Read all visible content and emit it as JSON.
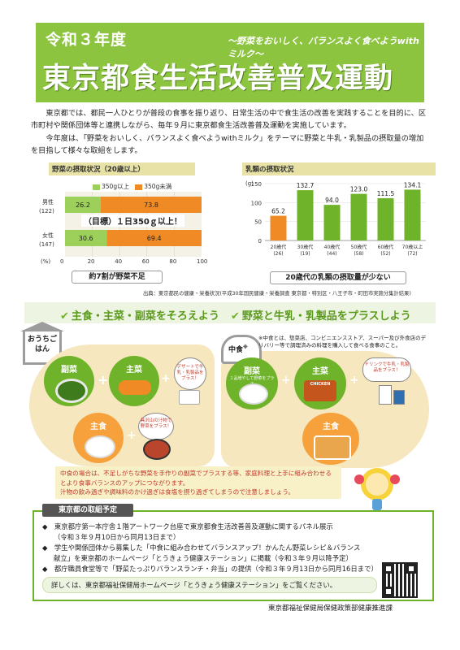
{
  "header": {
    "year": "令和３年度",
    "subtitle": "～野菜をおいしく、バランスよく食べようwithミルク～",
    "title": "東京都食生活改善普及運動"
  },
  "intro": {
    "p1": "東京都では、都民一人ひとりが普段の食事を振り返り、日常生活の中で食生活の改善を実践することを目的に、区市町村や関係団体等と連携しながら、毎年９月に東京都食生活改善普及運動を実施しています。",
    "p2": "今年度は、「野菜をおいしく、バランスよく食べようwithミルク」をテーマに野菜と牛乳・乳製品の摂取量の増加を目指して様々な取組をします。"
  },
  "veg_chart": {
    "title": "野菜の摂取状況（20歳以上）",
    "legend": [
      "350g以上",
      "350g未満"
    ],
    "rows": [
      {
        "label": "男性",
        "n": "(122)",
        "v1": "26.2",
        "v2": "73.8"
      },
      {
        "label": "女性",
        "n": "(147)",
        "v1": "30.6",
        "v2": "69.4"
      }
    ],
    "goal": "（目標）１日350ｇ以上！",
    "unit": "(%)",
    "ticks": [
      "0",
      "20",
      "40",
      "60",
      "80",
      "100"
    ],
    "caption": "約7割が野菜不足"
  },
  "chart_data": {
    "type": "bar",
    "title": "乳類の摂取状況",
    "ylabel": "(g)",
    "ylim": [
      0,
      150
    ],
    "yticks": [
      "0",
      "50",
      "100",
      "150"
    ],
    "categories": [
      "20歳代",
      "30歳代",
      "40歳代",
      "50歳代",
      "60歳代",
      "70歳以上"
    ],
    "counts": [
      "(26)",
      "(19)",
      "(44)",
      "(58)",
      "(52)",
      "(72)"
    ],
    "values": [
      65.2,
      132.7,
      94.0,
      123.0,
      111.5,
      134.1
    ],
    "value_labels": [
      "65.2",
      "132.7",
      "94.0",
      "123.0",
      "111.5",
      "134.1"
    ],
    "caption": "20歳代の乳類の摂取量が少ない"
  },
  "source": "出典：東京都民の健康・栄養状況(平成30年国民健康・栄養調査 東京都・特別区・八王子市・町田市実施分集計結果)",
  "section1": "主食・主菜・副菜をそろえよう",
  "section2": "野菜と牛乳・乳製品をプラスしよう",
  "home": {
    "tag": "おうちごはん",
    "fukusai": "副菜",
    "shusai": "主菜",
    "shushoku": "主食",
    "bubble1": "デザートで牛乳・乳製品をプラス！",
    "bubble2": "具沢山の汁物で野菜をプラス！",
    "plus": "+"
  },
  "nakashoku": {
    "tag": "中食",
    "mark": "※",
    "note": "※中食とは、惣菜店、コンビニエンスストア、スーパー及び外食店のデリバリー等で調理済みの料理を購入して食べる食事のこと。",
    "fukusai": "副菜",
    "fukusai_sub": "１品増やして野菜をプラス",
    "shusai": "主菜",
    "shushoku": "主食",
    "bubble": "ドリンクで牛乳・乳製品をプラス！",
    "chicken": "CHICKEN"
  },
  "advice": {
    "l1": "中食の場合は、不足しがちな野菜を手作りの副菜でプラスする等、家庭料理と上手に組み合わせる",
    "l2": "とより食事バランスのアップにつながります。",
    "l3": "汁物の飲み過ぎや調味料のかけ過ぎは食塩を摂り過ぎてしまうので注意しましょう。"
  },
  "plans": {
    "title": "東京都の取組予定",
    "items": [
      {
        "text": "東京都庁第一本庁舎１階アートワーク台座で東京都食生活改善普及運動に関するパネル展示",
        "text2": "（令和３年９月10日から同月13日まで）"
      },
      {
        "text": "学生や関係団体から募集した「中食に組み合わせてバランスアップ！かんたん野菜レシピ＆バランス",
        "text2": "献立」を東京都のホームページ「とうきょう健康ステーション」に掲載（令和３年９月以降予定）"
      },
      {
        "text": "都庁職員食堂等で「野菜たっぷりバランスランチ・弁当」の提供（令和３年９月13日から同月16日まで）",
        "text2": ""
      }
    ],
    "detail": "詳しくは、東京都福祉保健局ホームページ「とうきょう健康ステーション」をご覧ください。"
  },
  "footer": "東京都福祉保健局保健政策部健康推進課",
  "colors": {
    "green": "#8cc43f",
    "orange": "#f08a24",
    "lightgreen": "#9cd05a",
    "beige": "#f6e7bf"
  }
}
